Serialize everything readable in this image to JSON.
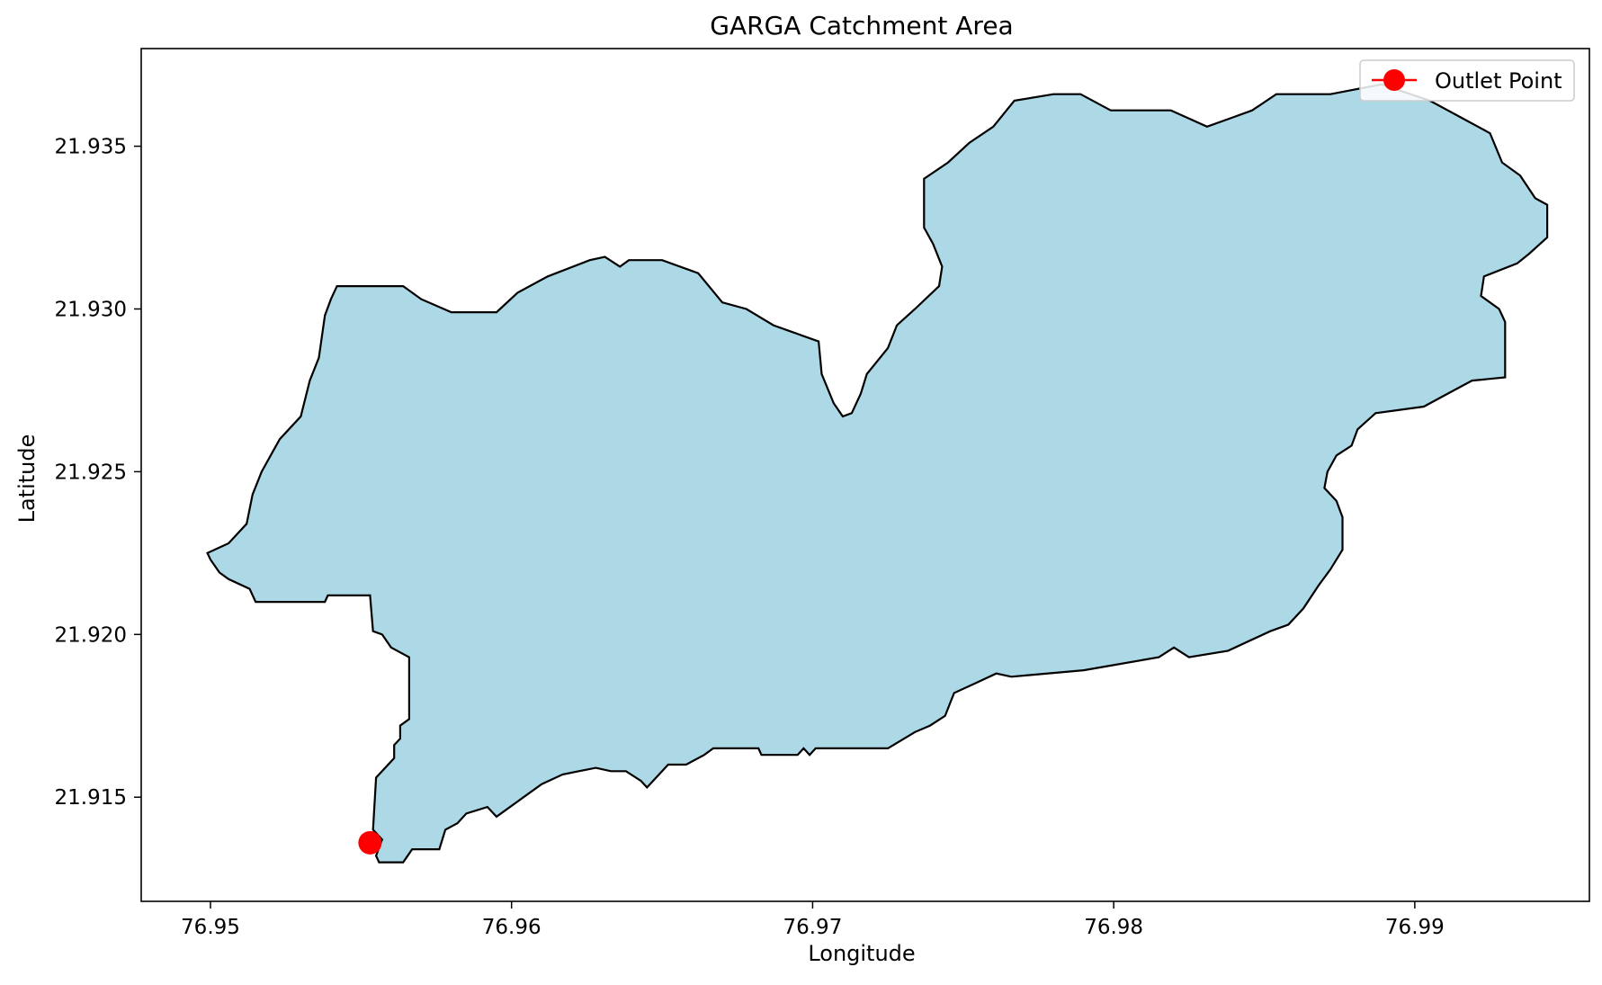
{
  "chart_data": {
    "type": "map",
    "title": "GARGA Catchment Area",
    "xlabel": "Longitude",
    "ylabel": "Latitude",
    "xlim": [
      76.9477,
      76.9958
    ],
    "ylim": [
      21.9118,
      21.938
    ],
    "x_ticks": [
      76.95,
      76.96,
      76.97,
      76.98,
      76.99
    ],
    "x_tick_labels": [
      "76.95",
      "76.96",
      "76.97",
      "76.98",
      "76.99"
    ],
    "y_ticks": [
      21.915,
      21.92,
      21.925,
      21.93,
      21.935
    ],
    "y_tick_labels": [
      "21.915",
      "21.920",
      "21.925",
      "21.930",
      "21.935"
    ],
    "grid": false,
    "legend_position": "top-right",
    "catchment": {
      "fill_color": "#add8e6",
      "edge_color": "#000000",
      "boundary": [
        [
          76.9499,
          21.9225
        ],
        [
          76.95,
          21.9223
        ],
        [
          76.9503,
          21.9219
        ],
        [
          76.9506,
          21.9217
        ],
        [
          76.9513,
          21.9214
        ],
        [
          76.9515,
          21.921
        ],
        [
          76.9538,
          21.921
        ],
        [
          76.9539,
          21.9212
        ],
        [
          76.9553,
          21.9212
        ],
        [
          76.9554,
          21.9201
        ],
        [
          76.9557,
          21.92
        ],
        [
          76.956,
          21.9196
        ],
        [
          76.9566,
          21.9193
        ],
        [
          76.9566,
          21.9174
        ],
        [
          76.9563,
          21.9172
        ],
        [
          76.9563,
          21.9168
        ],
        [
          76.9561,
          21.9166
        ],
        [
          76.9561,
          21.9162
        ],
        [
          76.9555,
          21.9156
        ],
        [
          76.9554,
          21.914
        ],
        [
          76.9557,
          21.9137
        ],
        [
          76.9555,
          21.9132
        ],
        [
          76.9556,
          21.913
        ],
        [
          76.9564,
          21.913
        ],
        [
          76.9567,
          21.9134
        ],
        [
          76.9576,
          21.9134
        ],
        [
          76.9578,
          21.914
        ],
        [
          76.9582,
          21.9142
        ],
        [
          76.9585,
          21.9145
        ],
        [
          76.9592,
          21.9147
        ],
        [
          76.9595,
          21.9144
        ],
        [
          76.9598,
          21.9146
        ],
        [
          76.9604,
          21.915
        ],
        [
          76.961,
          21.9154
        ],
        [
          76.9617,
          21.9157
        ],
        [
          76.9628,
          21.9159
        ],
        [
          76.9633,
          21.9158
        ],
        [
          76.9638,
          21.9158
        ],
        [
          76.9643,
          21.9155
        ],
        [
          76.9645,
          21.9153
        ],
        [
          76.9648,
          21.9156
        ],
        [
          76.9652,
          21.916
        ],
        [
          76.9658,
          21.916
        ],
        [
          76.9664,
          21.9163
        ],
        [
          76.9667,
          21.9165
        ],
        [
          76.9682,
          21.9165
        ],
        [
          76.9683,
          21.9163
        ],
        [
          76.9695,
          21.9163
        ],
        [
          76.9697,
          21.9165
        ],
        [
          76.9699,
          21.9163
        ],
        [
          76.9701,
          21.9165
        ],
        [
          76.9725,
          21.9165
        ],
        [
          76.9734,
          21.917
        ],
        [
          76.9739,
          21.9172
        ],
        [
          76.9744,
          21.9175
        ],
        [
          76.9747,
          21.9182
        ],
        [
          76.9754,
          21.9185
        ],
        [
          76.9761,
          21.9188
        ],
        [
          76.9766,
          21.9187
        ],
        [
          76.979,
          21.9189
        ],
        [
          76.9815,
          21.9193
        ],
        [
          76.982,
          21.9196
        ],
        [
          76.9825,
          21.9193
        ],
        [
          76.9838,
          21.9195
        ],
        [
          76.9852,
          21.9201
        ],
        [
          76.9858,
          21.9203
        ],
        [
          76.9863,
          21.9208
        ],
        [
          76.9868,
          21.9215
        ],
        [
          76.9872,
          21.922
        ],
        [
          76.9876,
          21.9226
        ],
        [
          76.9876,
          21.9236
        ],
        [
          76.9874,
          21.9241
        ],
        [
          76.987,
          21.9245
        ],
        [
          76.9871,
          21.925
        ],
        [
          76.9874,
          21.9255
        ],
        [
          76.9879,
          21.9258
        ],
        [
          76.9881,
          21.9263
        ],
        [
          76.9887,
          21.9268
        ],
        [
          76.9903,
          21.927
        ],
        [
          76.9911,
          21.9274
        ],
        [
          76.9919,
          21.9278
        ],
        [
          76.993,
          21.9279
        ],
        [
          76.993,
          21.9296
        ],
        [
          76.9928,
          21.93
        ],
        [
          76.9922,
          21.9304
        ],
        [
          76.9923,
          21.931
        ],
        [
          76.9934,
          21.9314
        ],
        [
          76.9938,
          21.9317
        ],
        [
          76.9944,
          21.9322
        ],
        [
          76.9944,
          21.9332
        ],
        [
          76.994,
          21.9334
        ],
        [
          76.9935,
          21.9341
        ],
        [
          76.9929,
          21.9345
        ],
        [
          76.9925,
          21.9354
        ],
        [
          76.9915,
          21.9359
        ],
        [
          76.9905,
          21.9364
        ],
        [
          76.9889,
          21.9369
        ],
        [
          76.9872,
          21.9366
        ],
        [
          76.9854,
          21.9366
        ],
        [
          76.9846,
          21.9361
        ],
        [
          76.984,
          21.9359
        ],
        [
          76.9831,
          21.9356
        ],
        [
          76.9819,
          21.9361
        ],
        [
          76.9799,
          21.9361
        ],
        [
          76.9789,
          21.9366
        ],
        [
          76.978,
          21.9366
        ],
        [
          76.9767,
          21.9364
        ],
        [
          76.976,
          21.9356
        ],
        [
          76.9752,
          21.9351
        ],
        [
          76.9745,
          21.9345
        ],
        [
          76.9737,
          21.934
        ],
        [
          76.9737,
          21.9325
        ],
        [
          76.974,
          21.932
        ],
        [
          76.9743,
          21.9313
        ],
        [
          76.9742,
          21.9307
        ],
        [
          76.9734,
          21.93
        ],
        [
          76.9728,
          21.9295
        ],
        [
          76.9725,
          21.9288
        ],
        [
          76.9718,
          21.928
        ],
        [
          76.9716,
          21.9274
        ],
        [
          76.9713,
          21.9268
        ],
        [
          76.971,
          21.9267
        ],
        [
          76.9707,
          21.9271
        ],
        [
          76.9703,
          21.928
        ],
        [
          76.9702,
          21.929
        ],
        [
          76.9693,
          21.9293
        ],
        [
          76.9687,
          21.9295
        ],
        [
          76.9678,
          21.93
        ],
        [
          76.967,
          21.9302
        ],
        [
          76.9662,
          21.9311
        ],
        [
          76.965,
          21.9315
        ],
        [
          76.9639,
          21.9315
        ],
        [
          76.9636,
          21.9313
        ],
        [
          76.9631,
          21.9316
        ],
        [
          76.9626,
          21.9315
        ],
        [
          76.9612,
          21.931
        ],
        [
          76.9602,
          21.9305
        ],
        [
          76.9595,
          21.9299
        ],
        [
          76.958,
          21.9299
        ],
        [
          76.957,
          21.9303
        ],
        [
          76.9564,
          21.9307
        ],
        [
          76.9542,
          21.9307
        ],
        [
          76.954,
          21.9303
        ],
        [
          76.9538,
          21.9298
        ],
        [
          76.9536,
          21.9285
        ],
        [
          76.9533,
          21.9278
        ],
        [
          76.953,
          21.9267
        ],
        [
          76.9523,
          21.926
        ],
        [
          76.952,
          21.9255
        ],
        [
          76.9517,
          21.925
        ],
        [
          76.9514,
          21.9243
        ],
        [
          76.9512,
          21.9234
        ],
        [
          76.9506,
          21.9228
        ],
        [
          76.9499,
          21.9225
        ]
      ]
    },
    "series": [
      {
        "name": "Outlet Point",
        "color": "#ff0000",
        "marker": "circle",
        "points": [
          [
            76.9553,
            21.9136
          ]
        ]
      }
    ]
  }
}
